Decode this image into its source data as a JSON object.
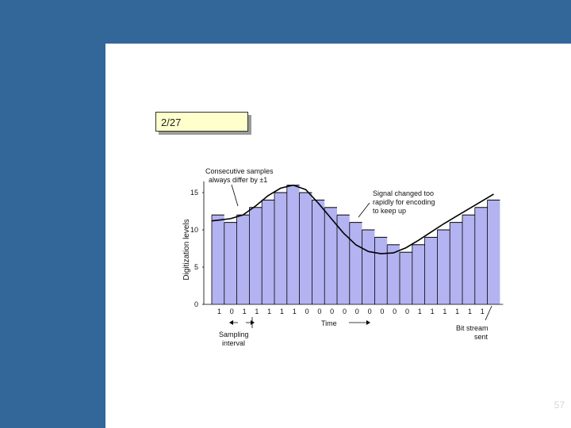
{
  "slide": {
    "tag_text": "2/27",
    "page_number": "57",
    "background_color": "#336699",
    "tag_color": "#ffffcc"
  },
  "chart_data": {
    "type": "bar",
    "ylabel": "Digitization levels",
    "xlabel": "Time",
    "ylim": [
      0,
      16
    ],
    "yticks": [
      0,
      5,
      10,
      15
    ],
    "bar_color": "#b3b3f2",
    "levels": [
      12,
      11,
      12,
      13,
      14,
      15,
      16,
      15,
      14,
      13,
      12,
      11,
      10,
      9,
      8,
      7,
      8,
      9,
      10,
      11,
      12,
      13,
      14
    ],
    "bits": [
      "1",
      "0",
      "1",
      "1",
      "1",
      "1",
      "1",
      "0",
      "0",
      "0",
      "0",
      "0",
      "0",
      "0",
      "0",
      "0",
      "1",
      "1",
      "1",
      "1",
      "1",
      "1"
    ],
    "analog_signal": {
      "x": [
        0,
        0.5,
        1.5,
        2.5,
        3.5,
        4.5,
        5.5,
        6.5,
        7.5,
        8.5,
        9.5,
        10.5,
        11.5,
        12.5,
        13.5,
        14.5,
        15.5,
        16.5,
        17.5,
        18.5,
        19.5,
        20.5,
        21.5,
        22.5
      ],
      "y": [
        11.2,
        11.3,
        11.5,
        12.0,
        13.2,
        14.6,
        15.6,
        16.0,
        15.4,
        13.6,
        11.6,
        9.6,
        8.0,
        7.1,
        6.8,
        6.9,
        7.6,
        8.6,
        9.7,
        10.8,
        11.8,
        12.8,
        13.8,
        14.8
      ]
    },
    "annotations": {
      "consecutive": [
        "Consecutive samples",
        "always differ by ±1"
      ],
      "signal_changed": [
        "Signal changed too",
        "rapidly for encoding",
        "to keep up"
      ],
      "sampling": [
        "Sampling",
        "interval"
      ],
      "bitstream": [
        "Bit stream",
        "sent"
      ]
    }
  }
}
